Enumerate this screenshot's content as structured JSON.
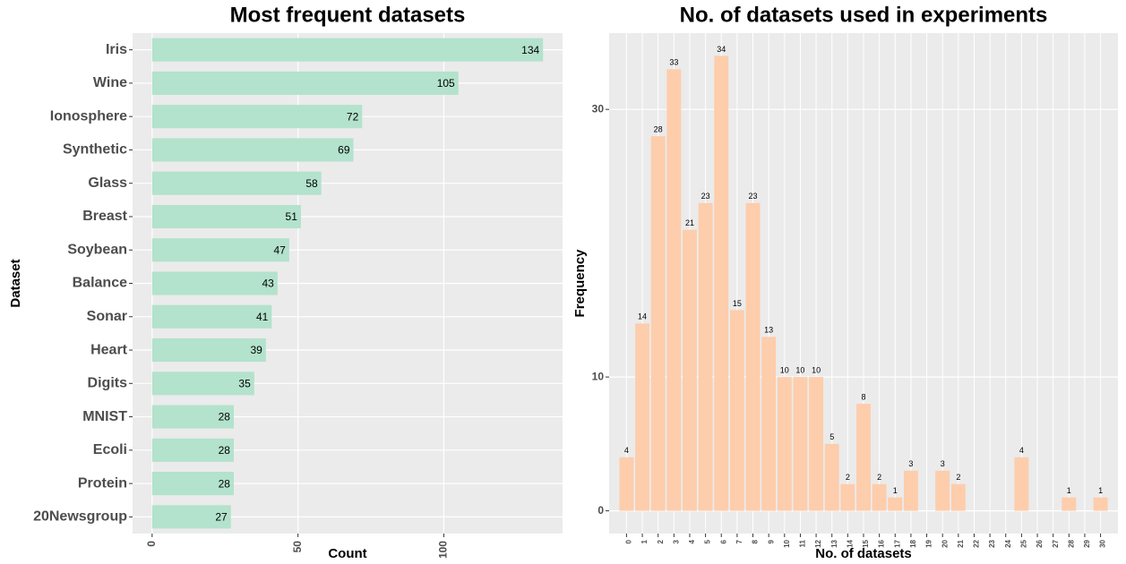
{
  "chart_data": [
    {
      "type": "bar",
      "orientation": "horizontal",
      "title": "Most frequent datasets",
      "xlabel": "Count",
      "ylabel": "Dataset",
      "categories": [
        "Iris",
        "Wine",
        "Ionosphere",
        "Synthetic",
        "Glass",
        "Breast",
        "Soybean",
        "Balance",
        "Sonar",
        "Heart",
        "Digits",
        "MNIST",
        "Ecoli",
        "Protein",
        "20Newsgroup"
      ],
      "values": [
        134,
        105,
        72,
        69,
        58,
        51,
        47,
        43,
        41,
        39,
        35,
        28,
        28,
        28,
        27
      ],
      "color": "#b3e2cd",
      "xlim": [
        -6.7,
        140.7
      ],
      "xticks": [
        0,
        50,
        100
      ],
      "grid": true
    },
    {
      "type": "bar",
      "orientation": "vertical",
      "title": "No. of datasets used in experiments",
      "xlabel": "No. of datasets",
      "ylabel": "Frequency",
      "categories": [
        "0",
        "1",
        "2",
        "3",
        "4",
        "5",
        "6",
        "7",
        "8",
        "9",
        "10",
        "11",
        "12",
        "13",
        "14",
        "15",
        "16",
        "17",
        "18",
        "19",
        "20",
        "21",
        "22",
        "23",
        "24",
        "25",
        "26",
        "27",
        "28",
        "29",
        "30"
      ],
      "values": [
        4,
        14,
        28,
        33,
        21,
        23,
        34,
        15,
        23,
        13,
        10,
        10,
        10,
        5,
        2,
        8,
        2,
        1,
        3,
        null,
        3,
        2,
        null,
        null,
        null,
        4,
        null,
        null,
        1,
        null,
        1
      ],
      "color": "#fdcdac",
      "ylim": [
        -1.7,
        35.7
      ],
      "yticks": [
        0,
        10,
        30
      ],
      "grid": true
    }
  ]
}
